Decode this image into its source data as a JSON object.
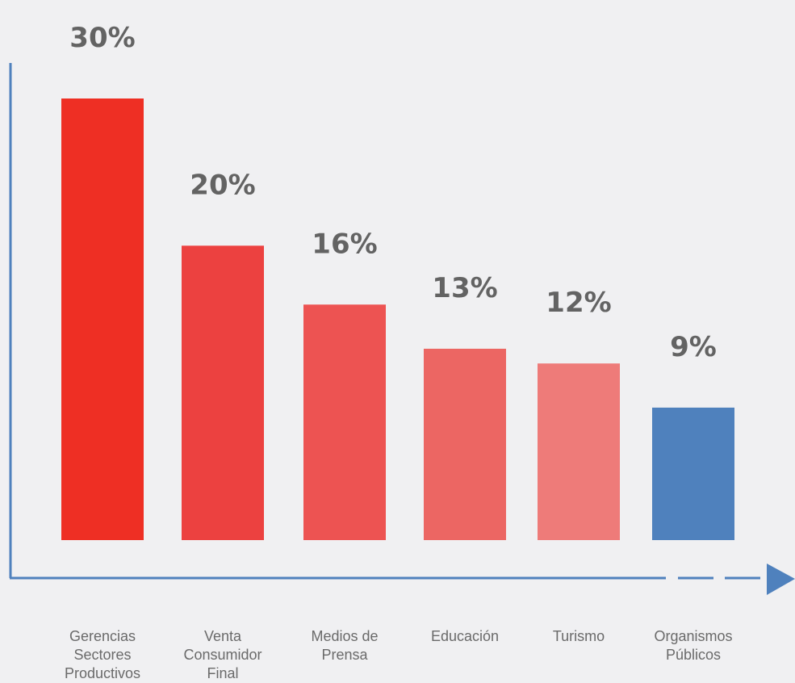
{
  "chart_data": {
    "type": "bar",
    "title": "",
    "xlabel": "",
    "ylabel": "",
    "categories": [
      "Gerencias Sectores Productivos",
      "Venta Consumidor Final",
      "Medios de Prensa",
      "Educación",
      "Turismo",
      "Organismos Públicos"
    ],
    "category_lines": [
      [
        "Gerencias",
        "Sectores",
        "Productivos"
      ],
      [
        "Venta",
        "Consumidor",
        "Final"
      ],
      [
        "Medios de",
        "Prensa"
      ],
      [
        "Educación"
      ],
      [
        "Turismo"
      ],
      [
        "Organismos",
        "Públicos"
      ]
    ],
    "values": [
      30,
      20,
      16,
      13,
      12,
      9
    ],
    "value_labels": [
      "30%",
      "20%",
      "16%",
      "13%",
      "12%",
      "9%"
    ],
    "bar_colors": [
      "#ee2f24",
      "#ec4140",
      "#ed5352",
      "#ec6663",
      "#ee7b79",
      "#4f81bd"
    ],
    "ylim": [
      0,
      30
    ],
    "grid": false,
    "legend": "none",
    "axis_color": "#4f81bd"
  }
}
